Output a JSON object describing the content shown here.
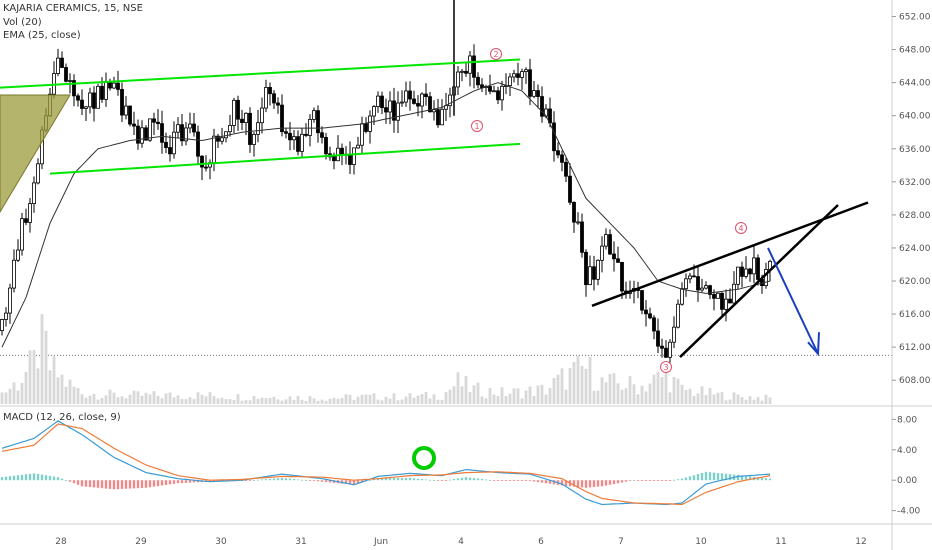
{
  "legend": {
    "main_title": "KAJARIA CERAMICS, 15, NSE",
    "vol_label": "Vol (20)",
    "ema_label": "EMA (25, close)",
    "macd_label": "MACD (12, 26, close, 9)"
  },
  "colors": {
    "up": "#ffffff",
    "down": "#000000",
    "candle_outline": "#000000",
    "ema": "#333333",
    "channel": "#00e600",
    "wedge": "#000000",
    "arrow": "#1a3fbf",
    "marker": "#e0506a",
    "triangle_fill": "#9b9b3c",
    "circle": "#00cc00",
    "macd_line": "#3b9bd4",
    "signal_line": "#ef7b3a",
    "hist_up": "#7fd0c8",
    "hist_down": "#f08a8a",
    "volume": "#d8d8d8"
  },
  "wave_markers": [
    "1",
    "2",
    "3",
    "4"
  ],
  "chart_data": {
    "type": "candlestick",
    "symbol": "KAJARIA CERAMICS",
    "interval": "15",
    "exchange": "NSE",
    "price_axis": {
      "min": 605,
      "max": 654,
      "ticks": [
        652.0,
        648.0,
        644.0,
        640.0,
        636.0,
        632.0,
        628.0,
        624.0,
        620.0,
        616.0,
        612.0,
        608.0
      ]
    },
    "macd_axis": {
      "min": -5.5,
      "max": 9.5,
      "ticks": [
        8.0,
        4.0,
        0.0,
        -4.0
      ]
    },
    "x_labels": [
      "28",
      "29",
      "30",
      "31",
      "Jun",
      "4",
      "6",
      "7",
      "10",
      "11",
      "12"
    ],
    "support_level": 611.0,
    "closes_anchor": [
      [
        0,
        614
      ],
      [
        3,
        622
      ],
      [
        7,
        630
      ],
      [
        11,
        641
      ],
      [
        14,
        647
      ],
      [
        17,
        645
      ],
      [
        20,
        640
      ],
      [
        24,
        643
      ],
      [
        28,
        643
      ],
      [
        31,
        640
      ],
      [
        34,
        637
      ],
      [
        38,
        640
      ],
      [
        42,
        636
      ],
      [
        46,
        639
      ],
      [
        50,
        634
      ],
      [
        54,
        637
      ],
      [
        58,
        641
      ],
      [
        62,
        638
      ],
      [
        66,
        643
      ],
      [
        70,
        639
      ],
      [
        74,
        637
      ],
      [
        78,
        641
      ],
      [
        82,
        635
      ],
      [
        86,
        634
      ],
      [
        90,
        638
      ],
      [
        94,
        641
      ],
      [
        98,
        640
      ],
      [
        102,
        642
      ],
      [
        106,
        641
      ],
      [
        110,
        640
      ],
      [
        114,
        645
      ],
      [
        118,
        646
      ],
      [
        122,
        643
      ],
      [
        126,
        644
      ],
      [
        130,
        645
      ],
      [
        134,
        642
      ],
      [
        136,
        640
      ],
      [
        140,
        634
      ],
      [
        142,
        630
      ],
      [
        144,
        627
      ],
      [
        146,
        621
      ],
      [
        148,
        620
      ],
      [
        150,
        625
      ],
      [
        152,
        624
      ],
      [
        155,
        620
      ],
      [
        158,
        618
      ],
      [
        161,
        617
      ],
      [
        163,
        615
      ],
      [
        165,
        611
      ],
      [
        167,
        611
      ],
      [
        169,
        617
      ],
      [
        172,
        620
      ],
      [
        175,
        618
      ],
      [
        178,
        619
      ],
      [
        181,
        617
      ],
      [
        184,
        621
      ],
      [
        187,
        622
      ],
      [
        190,
        621
      ],
      [
        192,
        623
      ]
    ],
    "ema": [
      [
        0,
        612
      ],
      [
        6,
        618
      ],
      [
        12,
        627
      ],
      [
        18,
        633
      ],
      [
        24,
        636
      ],
      [
        32,
        637
      ],
      [
        40,
        637.5
      ],
      [
        50,
        637
      ],
      [
        60,
        638
      ],
      [
        70,
        638.5
      ],
      [
        80,
        638.5
      ],
      [
        90,
        639
      ],
      [
        100,
        640
      ],
      [
        110,
        641
      ],
      [
        118,
        643
      ],
      [
        124,
        644
      ],
      [
        130,
        643
      ],
      [
        136,
        640
      ],
      [
        140,
        636
      ],
      [
        146,
        630
      ],
      [
        152,
        627
      ],
      [
        158,
        624
      ],
      [
        164,
        620
      ],
      [
        170,
        619
      ],
      [
        176,
        618.5
      ],
      [
        184,
        619
      ],
      [
        192,
        620
      ]
    ],
    "volume_anchor": [
      [
        0,
        0.15
      ],
      [
        4,
        0.3
      ],
      [
        8,
        0.55
      ],
      [
        10,
        1.0
      ],
      [
        12,
        0.5
      ],
      [
        16,
        0.3
      ],
      [
        20,
        0.15
      ],
      [
        30,
        0.12
      ],
      [
        40,
        0.12
      ],
      [
        50,
        0.12
      ],
      [
        60,
        0.1
      ],
      [
        70,
        0.1
      ],
      [
        80,
        0.08
      ],
      [
        90,
        0.1
      ],
      [
        100,
        0.1
      ],
      [
        110,
        0.12
      ],
      [
        114,
        0.3
      ],
      [
        118,
        0.2
      ],
      [
        126,
        0.15
      ],
      [
        136,
        0.2
      ],
      [
        140,
        0.35
      ],
      [
        146,
        0.5
      ],
      [
        150,
        0.3
      ],
      [
        160,
        0.25
      ],
      [
        166,
        0.4
      ],
      [
        170,
        0.2
      ],
      [
        180,
        0.12
      ],
      [
        192,
        0.08
      ]
    ],
    "macd_line": [
      [
        0,
        4.2
      ],
      [
        8,
        5.5
      ],
      [
        14,
        7.8
      ],
      [
        20,
        6.0
      ],
      [
        28,
        3.0
      ],
      [
        36,
        1.0
      ],
      [
        44,
        0.2
      ],
      [
        52,
        -0.2
      ],
      [
        60,
        0.0
      ],
      [
        70,
        0.8
      ],
      [
        80,
        0.2
      ],
      [
        88,
        -0.6
      ],
      [
        94,
        0.5
      ],
      [
        102,
        0.9
      ],
      [
        110,
        0.6
      ],
      [
        116,
        1.4
      ],
      [
        124,
        1.0
      ],
      [
        132,
        0.8
      ],
      [
        140,
        -0.5
      ],
      [
        146,
        -2.5
      ],
      [
        150,
        -3.2
      ],
      [
        158,
        -3.0
      ],
      [
        166,
        -3.2
      ],
      [
        170,
        -3.0
      ],
      [
        176,
        -0.5
      ],
      [
        184,
        0.5
      ],
      [
        192,
        0.8
      ]
    ],
    "signal_line": [
      [
        0,
        3.8
      ],
      [
        8,
        4.6
      ],
      [
        14,
        7.4
      ],
      [
        20,
        6.8
      ],
      [
        28,
        4.2
      ],
      [
        36,
        2.0
      ],
      [
        44,
        0.6
      ],
      [
        52,
        0.0
      ],
      [
        60,
        0.1
      ],
      [
        70,
        0.5
      ],
      [
        80,
        0.4
      ],
      [
        88,
        0.0
      ],
      [
        94,
        0.2
      ],
      [
        102,
        0.6
      ],
      [
        110,
        0.7
      ],
      [
        116,
        1.0
      ],
      [
        124,
        1.1
      ],
      [
        132,
        0.9
      ],
      [
        140,
        0.2
      ],
      [
        146,
        -1.5
      ],
      [
        150,
        -2.4
      ],
      [
        158,
        -3.0
      ],
      [
        166,
        -3.1
      ],
      [
        170,
        -3.2
      ],
      [
        176,
        -1.6
      ],
      [
        184,
        -0.2
      ],
      [
        192,
        0.6
      ]
    ],
    "candle_count": 193
  }
}
